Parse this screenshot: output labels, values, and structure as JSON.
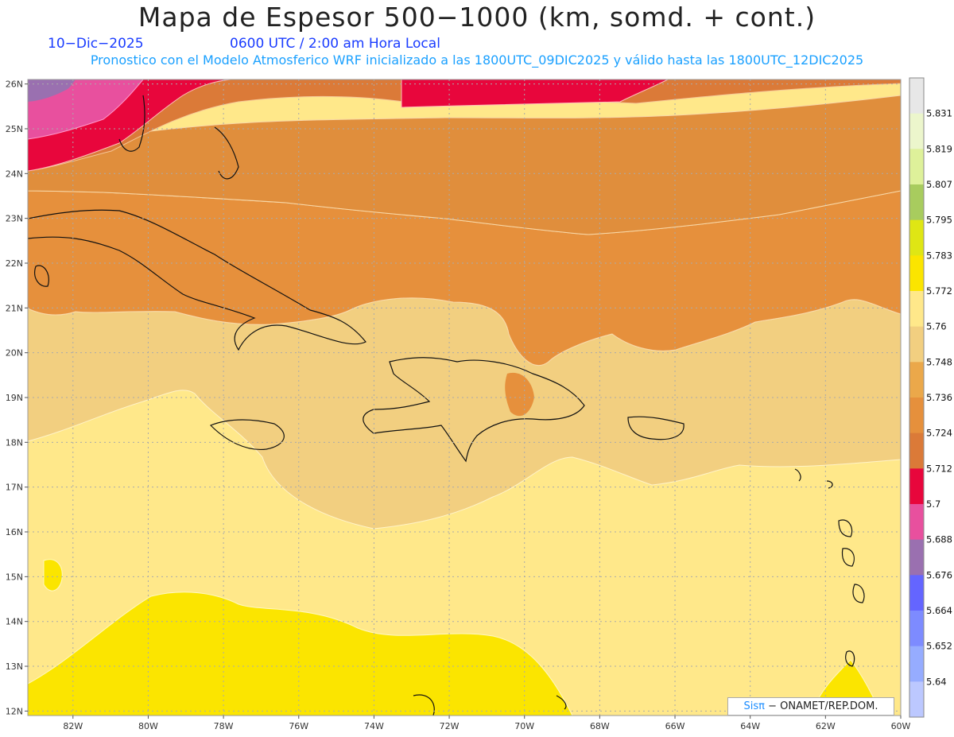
{
  "header": {
    "title": "Mapa de Espesor 500−1000 (km, somd. + cont.)",
    "date": "10−Dic−2025",
    "time": "0600 UTC / 2:00 am Hora Local",
    "subtitle": "Pronostico con el Modelo Atmosferico WRF inicializado a las 1800UTC_09DIC2025 y válido hasta las  1800UTC_12DIC2025"
  },
  "map": {
    "lon_range": [
      -83.2,
      -60
    ],
    "lat_range": [
      11.9,
      26.1
    ],
    "lon_labels": [
      "82W",
      "80W",
      "78W",
      "76W",
      "74W",
      "72W",
      "70W",
      "68W",
      "66W",
      "64W",
      "62W",
      "60W"
    ],
    "lat_labels": [
      "26N",
      "25N",
      "24N",
      "23N",
      "22N",
      "21N",
      "20N",
      "19N",
      "18N",
      "17N",
      "16N",
      "15N",
      "14N",
      "13N",
      "12N"
    ],
    "gridlines": "dotted"
  },
  "colorbar": {
    "levels": [
      "5.64",
      "5.652",
      "5.664",
      "5.676",
      "5.688",
      "5.7",
      "5.712",
      "5.724",
      "5.736",
      "5.748",
      "5.76",
      "5.772",
      "5.783",
      "5.795",
      "5.807",
      "5.819",
      "5.831"
    ],
    "colors": [
      "#bcc8ff",
      "#96acff",
      "#7d8bff",
      "#6465ff",
      "#9a70b0",
      "#e8509e",
      "#e8063c",
      "#db7a38",
      "#e6903c",
      "#eba84a",
      "#f2cf80",
      "#ffe88a",
      "#fbe500",
      "#dfe614",
      "#a8cc5e",
      "#def19a",
      "#ecf6cc",
      "#e7e7e7"
    ]
  },
  "credit": {
    "brand": "Sisπ",
    "text": "− ONAMET/REP.DOM."
  }
}
